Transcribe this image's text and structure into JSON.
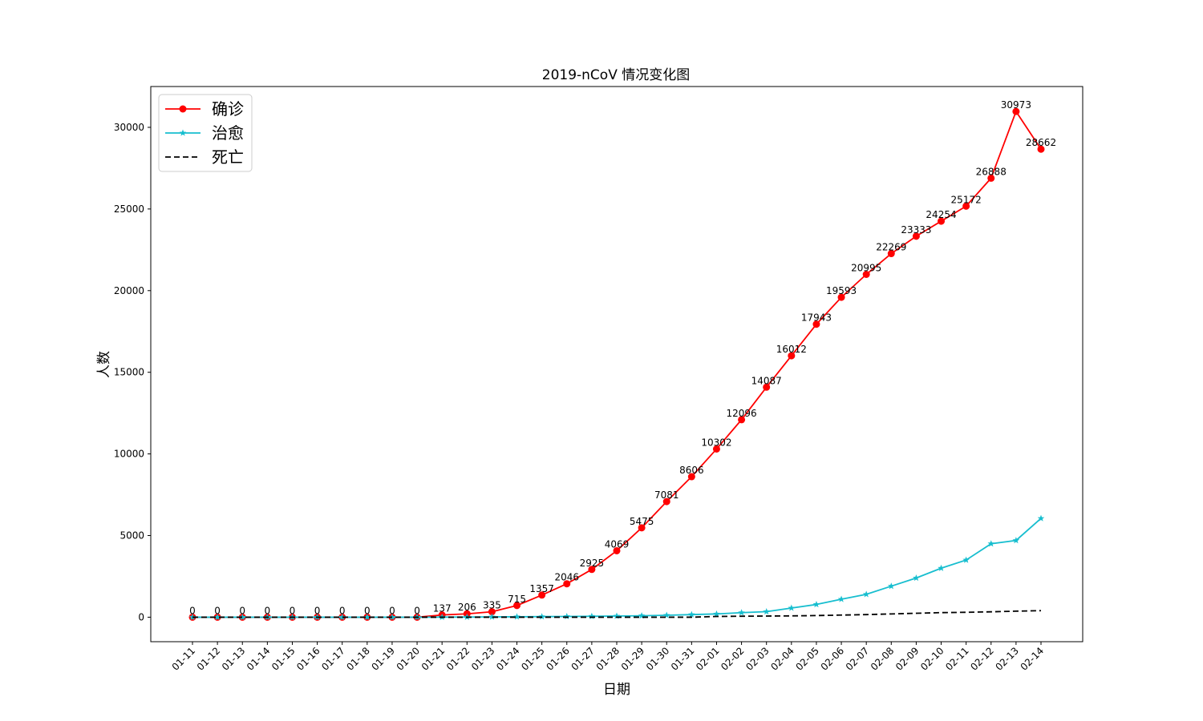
{
  "chart_data": {
    "type": "line",
    "title": "2019-nCoV 情况变化图",
    "xlabel": "日期",
    "ylabel": "人数",
    "ylim": [
      -1500,
      32500
    ],
    "yticks": [
      0,
      5000,
      10000,
      15000,
      20000,
      25000,
      30000
    ],
    "ytick_labels": [
      "0",
      "5000",
      "10000",
      "15000",
      "20000",
      "25000",
      "30000"
    ],
    "grid": false,
    "legend_position": "top-left",
    "categories": [
      "01-11",
      "01-12",
      "01-13",
      "01-14",
      "01-15",
      "01-16",
      "01-17",
      "01-18",
      "01-19",
      "01-20",
      "01-21",
      "01-22",
      "01-23",
      "01-24",
      "01-25",
      "01-26",
      "01-27",
      "01-28",
      "01-29",
      "01-30",
      "01-31",
      "02-01",
      "02-02",
      "02-03",
      "02-04",
      "02-05",
      "02-06",
      "02-07",
      "02-08",
      "02-09",
      "02-10",
      "02-11",
      "02-12",
      "02-13",
      "02-14"
    ],
    "series": [
      {
        "name": "确诊",
        "color": "#ff0000",
        "marker": "circle",
        "line_style": "solid",
        "values": [
          0,
          0,
          0,
          0,
          0,
          0,
          0,
          0,
          0,
          0,
          137,
          206,
          335,
          715,
          1357,
          2046,
          2925,
          4069,
          5475,
          7081,
          8606,
          10302,
          12096,
          14087,
          16012,
          17943,
          19593,
          20995,
          22269,
          23333,
          24254,
          25172,
          26888,
          30973,
          28662
        ],
        "labels": [
          "0",
          "0",
          "0",
          "0",
          "0",
          "0",
          "0",
          "0",
          "0",
          "0",
          "137",
          "206",
          "335",
          "715",
          "1357",
          "2046",
          "2925",
          "4069",
          "5475",
          "7081",
          "8606",
          "10302",
          "12096",
          "14087",
          "16012",
          "17943",
          "19593",
          "20995",
          "22269",
          "23333",
          "24254",
          "25172",
          "26888",
          "30973",
          "28662"
        ]
      },
      {
        "name": "治愈",
        "color": "#17becf",
        "marker": "star",
        "line_style": "solid",
        "values": [
          0,
          0,
          0,
          0,
          0,
          0,
          0,
          0,
          0,
          0,
          5,
          10,
          20,
          25,
          35,
          45,
          55,
          70,
          90,
          120,
          160,
          200,
          280,
          340,
          560,
          780,
          1100,
          1400,
          1900,
          2400,
          3000,
          3500,
          4500,
          4700,
          6050
        ]
      },
      {
        "name": "死亡",
        "color": "#000000",
        "marker": "none",
        "line_style": "dashed",
        "values": [
          0,
          0,
          0,
          0,
          0,
          0,
          0,
          0,
          0,
          0,
          0,
          0,
          0,
          0,
          0,
          0,
          0,
          0,
          0,
          0,
          0,
          45,
          60,
          70,
          80,
          100,
          130,
          160,
          200,
          240,
          280,
          300,
          330,
          370,
          400
        ]
      }
    ]
  }
}
